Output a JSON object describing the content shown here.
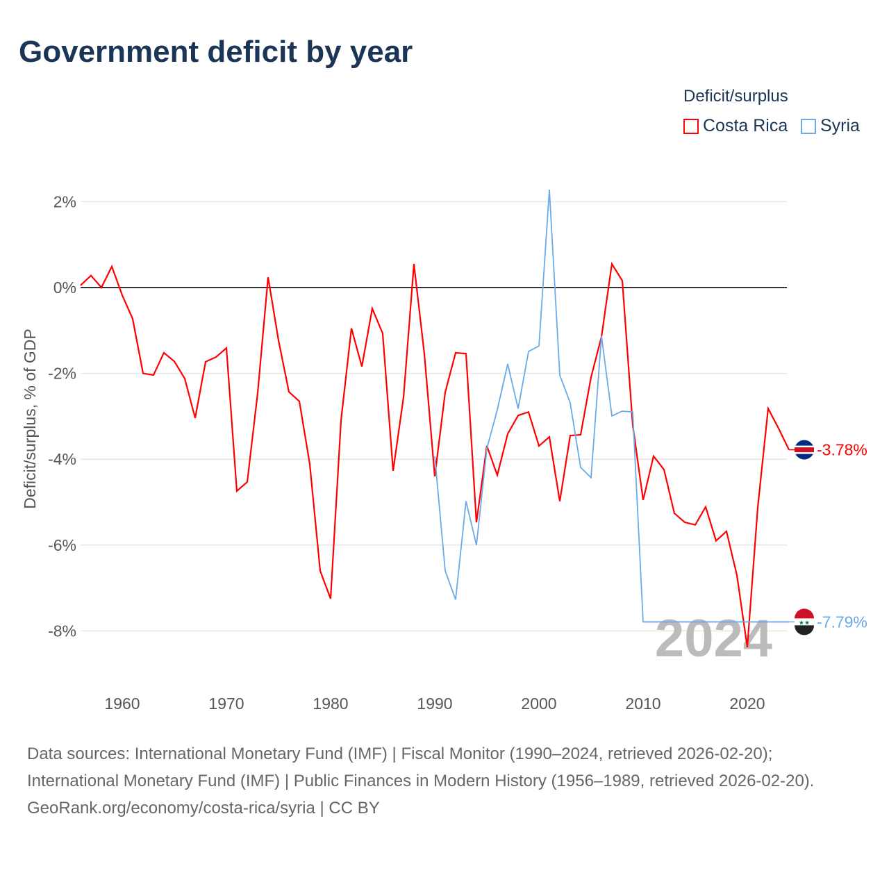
{
  "title": "Government deficit by year",
  "legend": {
    "title": "Deficit/surplus",
    "items": [
      "Costa Rica",
      "Syria"
    ]
  },
  "source_lines": [
    "Data sources: International Monetary Fund (IMF) | Fiscal Monitor (1990–2024, retrieved 2026-02-20); International Monetary Fund (IMF) | Public Finances in Modern History (1956–1989, retrieved 2026-02-20).",
    "GeoRank.org/economy/costa-rica/syria | CC BY"
  ],
  "chart_data": {
    "type": "line",
    "title": "Government deficit by year",
    "ylabel": "Deficit/surplus, % of GDP",
    "xlabel": "",
    "ylim": [
      -9,
      2.5
    ],
    "xlim": [
      1956,
      2024
    ],
    "yticks": [
      2,
      0,
      -2,
      -4,
      -6,
      -8
    ],
    "ytick_labels": [
      "2%",
      "0%",
      "-2%",
      "-4%",
      "-6%",
      "-8%"
    ],
    "xticks": [
      1960,
      1970,
      1980,
      1990,
      2000,
      2010,
      2020
    ],
    "year_label": "2024",
    "series": [
      {
        "name": "Costa Rica",
        "color": "#ff0000",
        "end_label": "-3.78%",
        "start": 1956,
        "values": [
          0.05,
          0.28,
          0,
          0.49,
          -0.18,
          -0.73,
          -2.0,
          -2.04,
          -1.52,
          -1.72,
          -2.12,
          -3.04,
          -1.73,
          -1.62,
          -1.41,
          -4.74,
          -4.53,
          -2.46,
          0.24,
          -1.23,
          -2.43,
          -2.65,
          -4.11,
          -6.6,
          -7.25,
          -3.1,
          -0.95,
          -1.84,
          -0.49,
          -1.07,
          -4.27,
          -2.56,
          0.55,
          -1.55,
          -4.4,
          -2.44,
          -1.52,
          -1.54,
          -5.47,
          -3.69,
          -4.37,
          -3.41,
          -2.98,
          -2.9,
          -3.69,
          -3.48,
          -4.98,
          -3.45,
          -3.43,
          -2.09,
          -1.15,
          0.55,
          0.16,
          -3.2,
          -4.95,
          -3.93,
          -4.24,
          -5.26,
          -5.47,
          -5.53,
          -5.11,
          -5.9,
          -5.68,
          -6.7,
          -8.38,
          -5.13,
          -2.82,
          -3.28,
          -3.78
        ]
      },
      {
        "name": "Syria",
        "color": "#6aaae8",
        "end_label": "-7.79%",
        "start": 1990,
        "values": [
          -3.93,
          -6.6,
          -7.27,
          -4.98,
          -6.0,
          -3.75,
          -2.85,
          -1.78,
          -2.82,
          -1.49,
          -1.36,
          2.28,
          -2.04,
          -2.69,
          -4.19,
          -4.43,
          -1.13,
          -2.99,
          -2.88,
          -2.9,
          -7.79,
          -7.79,
          -7.79,
          -7.79,
          -7.79,
          -7.79,
          -7.79,
          -7.79,
          -7.79,
          -7.79,
          -7.79,
          -7.79,
          -7.79,
          -7.79,
          -7.79
        ]
      }
    ]
  }
}
